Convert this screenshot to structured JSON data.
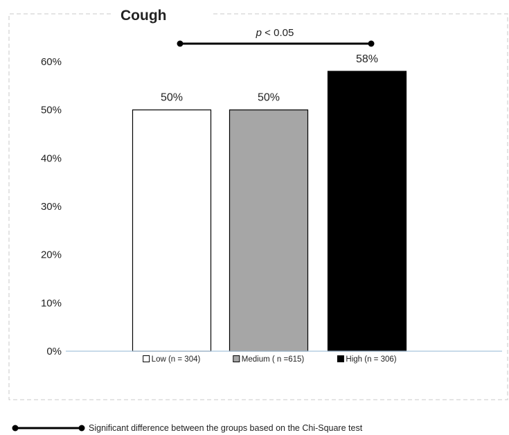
{
  "chart_data": {
    "type": "bar",
    "title": "Cough",
    "categories": [
      "Low (n = 304)",
      "Medium ( n =615)",
      "High (n = 306)"
    ],
    "values": [
      50,
      50,
      58
    ],
    "data_labels": [
      "50%",
      "50%",
      "58%"
    ],
    "bar_colors": [
      "#ffffff",
      "#a6a6a6",
      "#000000"
    ],
    "ylim": [
      0,
      60
    ],
    "yticks": [
      "0%",
      "10%",
      "20%",
      "30%",
      "40%",
      "50%",
      "60%"
    ],
    "xlabel": "",
    "ylabel": "",
    "grid": false,
    "significance": {
      "label_italic": "p",
      "label_rest": " < 0.05",
      "from_category": 0,
      "to_category": 2
    },
    "footnote": "Significant difference between the groups based on the Chi-Square test"
  }
}
